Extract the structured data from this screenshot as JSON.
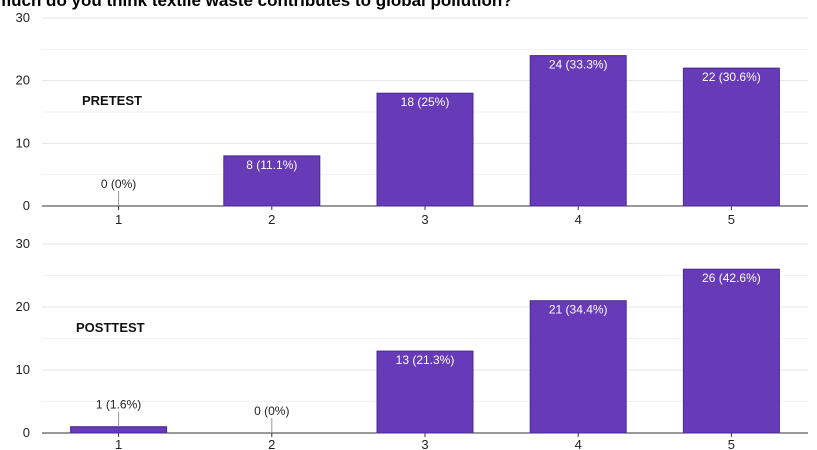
{
  "title": "much do you think textile waste contributes to global pollution?",
  "colors": {
    "bar": "#673ab7",
    "bar_stroke": "#4a2a90",
    "grid": "#e6e6e6",
    "axis": "#333333"
  },
  "chart_data": [
    {
      "type": "bar",
      "panel_label": "PRETEST",
      "categories": [
        "1",
        "2",
        "3",
        "4",
        "5"
      ],
      "values": [
        0,
        8,
        18,
        24,
        22
      ],
      "data_labels": [
        "0 (0%)",
        "8 (11.1%)",
        "18 (25%)",
        "24 (33.3%)",
        "22 (30.6%)"
      ],
      "ylim": [
        0,
        30
      ],
      "yticks": [
        0,
        10,
        20,
        30
      ],
      "grid": true
    },
    {
      "type": "bar",
      "panel_label": "POSTTEST",
      "categories": [
        "1",
        "2",
        "3",
        "4",
        "5"
      ],
      "values": [
        1,
        0,
        13,
        21,
        26
      ],
      "data_labels": [
        "1 (1.6%)",
        "0 (0%)",
        "13 (21.3%)",
        "21 (34.4%)",
        "26 (42.6%)"
      ],
      "ylim": [
        0,
        30
      ],
      "yticks": [
        0,
        10,
        20,
        30
      ],
      "grid": true
    }
  ]
}
